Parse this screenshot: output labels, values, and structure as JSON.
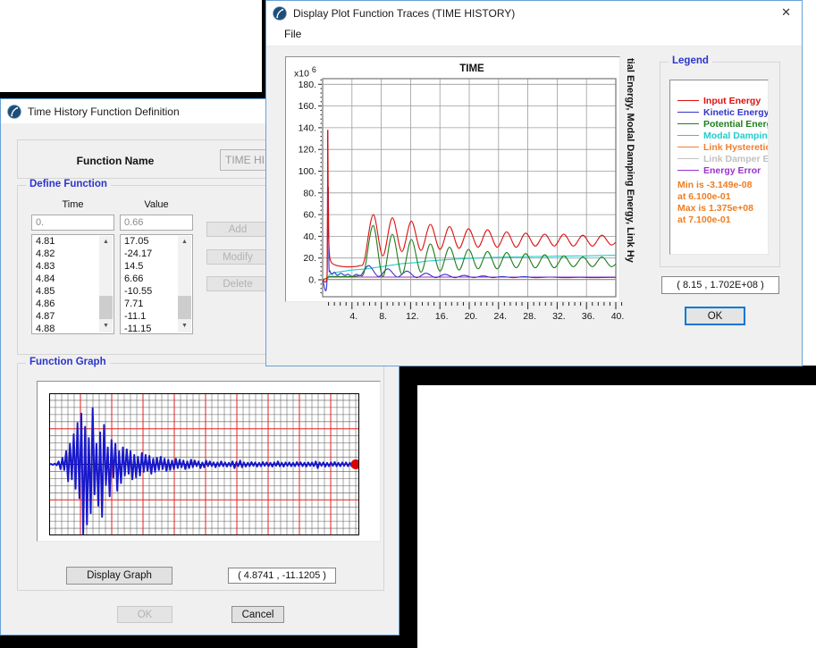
{
  "theme": {
    "accent": "#0078d7",
    "dialog_border": "#68a0d8",
    "caption_blue": "#2b35cc",
    "stats_orange": "#ee7d22",
    "dialog_bg": "#f0f0f0"
  },
  "trace_dialog": {
    "title": "Display Plot Function Traces  (TIME HISTORY)",
    "close_glyph": "✕",
    "menu": {
      "file": "File"
    },
    "plot": {
      "title": "TIME",
      "scale_prefix": "x10",
      "scale_exponent": "6",
      "right_axis_label": "tial Energy, Modal Damping  Energy, Link Hy"
    },
    "legend": {
      "label": "Legend",
      "stats": [
        "Min is -3.149e-08",
        "at 6.100e-01",
        "Max is 1.375e+08",
        "at 7.100e-01"
      ]
    },
    "coord_readout": "( 8.15 , 1.702E+08 )",
    "ok_label": "OK"
  },
  "definition_dialog": {
    "title": "Time History  Function Definition",
    "function_name_label": "Function Name",
    "function_name_value": "TIME HISTORY",
    "define_function": {
      "label": "Define Function",
      "time_header": "Time",
      "value_header": "Value",
      "time_input": "0.",
      "value_input": "0.66",
      "time_items": [
        "4.81",
        "4.82",
        "4.83",
        "4.84",
        "4.85",
        "4.86",
        "4.87",
        "4.88"
      ],
      "value_items": [
        "17.05",
        "-24.17",
        "14.5",
        "6.66",
        "-10.55",
        "7.71",
        "-11.1",
        "-11.15"
      ],
      "add_label": "Add",
      "modify_label": "Modify",
      "delete_label": "Delete"
    },
    "function_graph_label": "Function Graph",
    "display_graph_label": "Display Graph",
    "coord_readout": "( 4.8741 , -11.1205 )",
    "ok_label": "OK",
    "cancel_label": "Cancel"
  },
  "chart_data": [
    {
      "type": "line",
      "title": "TIME",
      "xlabel": "TIME",
      "ylabel": "tial Energy, Modal Damping  Energy, Link Hy",
      "y_scale_label": "x10^6",
      "xlim": [
        0,
        40
      ],
      "ylim": [
        -15,
        185
      ],
      "x_ticks_major": [
        4,
        8,
        12,
        16,
        20,
        24,
        28,
        32,
        36,
        40
      ],
      "x_minor_step": 0.8,
      "y_ticks_major": [
        0,
        20,
        40,
        60,
        80,
        100,
        120,
        140,
        160,
        180
      ],
      "y_minor_step": 4,
      "grid": true,
      "legend_position": "right",
      "annotations": {
        "min_text": "Min is -3.149e-08 at 6.100e-01",
        "max_text": "Max is 1.375e+08 at 7.100e-01"
      },
      "draw_order": [
        5,
        4,
        6,
        3,
        1,
        2,
        0
      ],
      "series": [
        {
          "name": "Input Energy",
          "color": "#dd1111",
          "points": [
            [
              0,
              0
            ],
            [
              0.55,
              0
            ],
            [
              0.63,
              30
            ],
            [
              0.71,
              137.5
            ],
            [
              0.78,
              60
            ],
            [
              0.9,
              26
            ],
            [
              1.2,
              16
            ],
            [
              2,
              13
            ],
            [
              3,
              12
            ],
            [
              4,
              12
            ],
            [
              5,
              13
            ],
            [
              5.7,
              18
            ],
            [
              6.9,
              60
            ],
            [
              8.2,
              22
            ],
            [
              9.5,
              57
            ],
            [
              10.8,
              26
            ],
            [
              12.1,
              54
            ],
            [
              13.4,
              27
            ],
            [
              14.7,
              51
            ],
            [
              16,
              28
            ],
            [
              17.3,
              49
            ],
            [
              18.6,
              29
            ],
            [
              19.9,
              47
            ],
            [
              21.2,
              30
            ],
            [
              22.5,
              46
            ],
            [
              23.8,
              30
            ],
            [
              25.1,
              44
            ],
            [
              26.4,
              30
            ],
            [
              27.7,
              43
            ],
            [
              29,
              31
            ],
            [
              30.3,
              42
            ],
            [
              31.6,
              31
            ],
            [
              32.9,
              42
            ],
            [
              34.2,
              31
            ],
            [
              35.5,
              41
            ],
            [
              36.8,
              31
            ],
            [
              38.1,
              41
            ],
            [
              39.4,
              32
            ],
            [
              40.7,
              40
            ]
          ]
        },
        {
          "name": "Kinetic Energy",
          "color": "#3333cc",
          "points": [
            [
              0,
              0
            ],
            [
              0.6,
              0
            ],
            [
              0.68,
              137
            ],
            [
              0.74,
              40
            ],
            [
              0.78,
              85
            ],
            [
              0.85,
              15
            ],
            [
              1,
              8
            ],
            [
              1.3,
              5
            ],
            [
              1.6,
              7
            ],
            [
              2,
              4
            ],
            [
              2.5,
              6
            ],
            [
              3,
              4
            ],
            [
              3.5,
              5
            ],
            [
              4,
              3
            ],
            [
              4.6,
              5
            ],
            [
              5.2,
              4
            ],
            [
              6.3,
              13
            ],
            [
              7.6,
              3
            ],
            [
              8.9,
              10
            ],
            [
              10.2,
              2.5
            ],
            [
              11.5,
              8
            ],
            [
              12.8,
              2
            ],
            [
              14.1,
              6
            ],
            [
              15.4,
              2
            ],
            [
              16.7,
              5
            ],
            [
              18,
              2
            ],
            [
              19.3,
              4
            ],
            [
              20.6,
              2
            ],
            [
              21.9,
              3.5
            ],
            [
              23.2,
              2
            ],
            [
              24.5,
              3
            ],
            [
              26,
              2
            ],
            [
              27.5,
              2.8
            ],
            [
              29,
              2
            ],
            [
              31,
              2.5
            ],
            [
              33,
              2
            ],
            [
              35,
              2.3
            ],
            [
              37,
              2
            ],
            [
              39,
              2.2
            ],
            [
              41,
              2
            ]
          ]
        },
        {
          "name": "Potential Energy",
          "color": "#1e7e1e",
          "points": [
            [
              0,
              0
            ],
            [
              0.7,
              2
            ],
            [
              1,
              3
            ],
            [
              2,
              3
            ],
            [
              3,
              3
            ],
            [
              4,
              3
            ],
            [
              5,
              4
            ],
            [
              5.7,
              8
            ],
            [
              6.9,
              50
            ],
            [
              8.2,
              3
            ],
            [
              9.5,
              42
            ],
            [
              10.8,
              5
            ],
            [
              12.1,
              37
            ],
            [
              13.4,
              7
            ],
            [
              14.7,
              33
            ],
            [
              16,
              8
            ],
            [
              17.3,
              30
            ],
            [
              18.6,
              9
            ],
            [
              19.9,
              28
            ],
            [
              21.2,
              10
            ],
            [
              22.5,
              26
            ],
            [
              23.8,
              10
            ],
            [
              25.1,
              25
            ],
            [
              26.4,
              11
            ],
            [
              27.7,
              24
            ],
            [
              29,
              11
            ],
            [
              30.3,
              23
            ],
            [
              31.6,
              11
            ],
            [
              32.9,
              22
            ],
            [
              34.2,
              12
            ],
            [
              35.5,
              21
            ],
            [
              36.8,
              12
            ],
            [
              38.1,
              21
            ],
            [
              39.4,
              12
            ],
            [
              40.7,
              20
            ]
          ]
        },
        {
          "name": "Modal Damping Energy",
          "color": "#22cccc",
          "points": [
            [
              0.7,
              1
            ],
            [
              1,
              5
            ],
            [
              2,
              7
            ],
            [
              3,
              8
            ],
            [
              4,
              9
            ],
            [
              5,
              9.5
            ],
            [
              6,
              10
            ],
            [
              7,
              11
            ],
            [
              8,
              12
            ],
            [
              9,
              13
            ],
            [
              10,
              14
            ],
            [
              11,
              15
            ],
            [
              12,
              15.5
            ],
            [
              13,
              16
            ],
            [
              14,
              17
            ],
            [
              15,
              17.5
            ],
            [
              16,
              18
            ],
            [
              17,
              18.5
            ],
            [
              18,
              19
            ],
            [
              19,
              19.3
            ],
            [
              20,
              19.6
            ],
            [
              21,
              20
            ],
            [
              22,
              20.2
            ],
            [
              23,
              20.5
            ],
            [
              24,
              20.7
            ],
            [
              25,
              20.9
            ],
            [
              26,
              21
            ],
            [
              27,
              21.1
            ],
            [
              28,
              21.3
            ],
            [
              29,
              21.4
            ],
            [
              30,
              21.5
            ],
            [
              31,
              21.6
            ],
            [
              32,
              21.7
            ],
            [
              33,
              21.8
            ],
            [
              34,
              21.9
            ],
            [
              35,
              22
            ],
            [
              36,
              22
            ],
            [
              37,
              22.1
            ],
            [
              38,
              22.4
            ],
            [
              39,
              22.5
            ],
            [
              41,
              22.5
            ]
          ]
        },
        {
          "name": "Link Hysteretic Energy",
          "color": "#f08030",
          "points": [
            [
              0.7,
              0.4
            ],
            [
              41,
              0.4
            ]
          ]
        },
        {
          "name": "Link Damper Energy",
          "color": "#c0c0c0",
          "points": [
            [
              0.7,
              0.2
            ],
            [
              41,
              0.2
            ]
          ]
        },
        {
          "name": "Energy Error",
          "color": "#9933cc",
          "points": [
            [
              0.7,
              2.5
            ],
            [
              41,
              2.5
            ]
          ]
        }
      ]
    },
    {
      "type": "line",
      "name": "Time History Function",
      "t_start": 0,
      "dt": 0.25,
      "ylim": [
        -38,
        38
      ],
      "line_color": "#1818cc",
      "marker": {
        "type": "dot",
        "color": "#dd0000",
        "position": "end"
      },
      "cursor": [
        4.8741,
        -11.1205
      ],
      "values": [
        0,
        0.2,
        -0.3,
        0.4,
        -0.5,
        1.5,
        -2.5,
        3.5,
        -3,
        7,
        -9,
        11,
        -8,
        16,
        -13,
        22,
        -18,
        27,
        -37,
        20,
        -32,
        14,
        -26,
        30,
        -16,
        11,
        -22,
        17,
        -28,
        21,
        -11,
        9,
        -17,
        13,
        -7,
        11,
        -14,
        7,
        -10,
        9,
        -6,
        8,
        -5,
        7,
        -8,
        5,
        -7,
        4,
        -6,
        6,
        -4,
        5,
        -3.5,
        4.5,
        -5,
        3,
        -4,
        3.5,
        -3,
        4,
        -2.5,
        3,
        -3.5,
        2.5,
        -3,
        2,
        -2.5,
        3,
        -2,
        2.5,
        -1.5,
        2,
        -2.5,
        1.5,
        -2,
        2.5,
        -1.5,
        2,
        -1,
        1.5,
        -2,
        1,
        -1.5,
        2,
        -1,
        1.5,
        -1,
        1,
        -1.5,
        1,
        -1,
        1.5,
        -1,
        1,
        -1.2,
        0.8,
        -1,
        1.5,
        -2,
        1.2,
        -1,
        2,
        -1.5,
        1,
        -1.2,
        0.8,
        -1,
        1.2,
        -0.8,
        1,
        -1.2,
        0.8,
        -1,
        1.2,
        -0.8,
        1,
        -1,
        0.8,
        -1.2,
        1,
        -0.8,
        1.5,
        -1,
        0.8,
        -1.2,
        1,
        -0.8,
        1,
        -1,
        0.8,
        -1,
        1.2,
        -0.8,
        1,
        -1,
        0.8,
        -1.2,
        1,
        -0.8,
        1,
        -1,
        1.5,
        -2,
        1,
        -0.8,
        1,
        -1.2,
        0.8,
        -1,
        1,
        -0.8,
        1.2,
        -1,
        0.8,
        -1,
        1,
        -0.8,
        1,
        -1,
        0.8,
        -1,
        0.6,
        -0.8,
        0.4,
        0
      ]
    }
  ]
}
